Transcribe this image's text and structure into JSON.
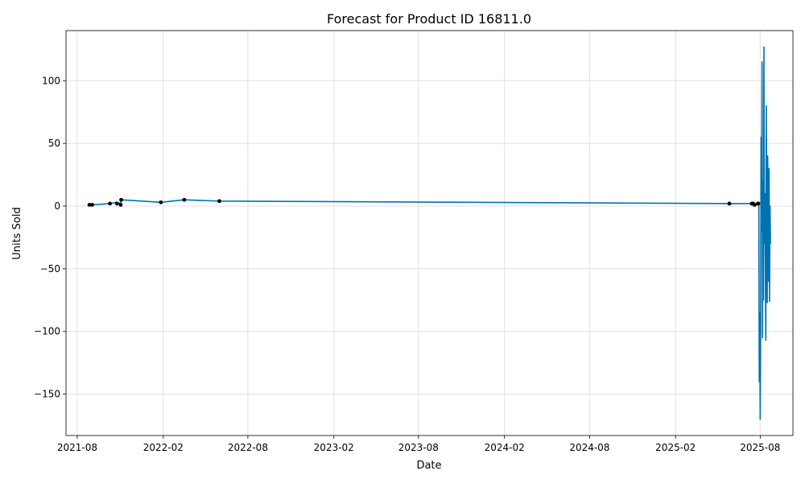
{
  "chart_data": {
    "type": "line",
    "title": "Forecast for Product ID 16811.0",
    "xlabel": "Date",
    "ylabel": "Units Sold",
    "grid": true,
    "legend": "none",
    "xlim": [
      "2021-07-08",
      "2025-10-10"
    ],
    "ylim": [
      -183,
      140
    ],
    "x_ticks": [
      "2021-08",
      "2022-02",
      "2022-08",
      "2023-02",
      "2023-08",
      "2024-02",
      "2024-08",
      "2025-02",
      "2025-08"
    ],
    "y_ticks": [
      100,
      50,
      0,
      -50,
      -100,
      -150
    ],
    "y_tick_labels": [
      "100",
      "50",
      "0",
      "−50",
      "−100",
      "−150"
    ],
    "colors": {
      "forecast_line": "#0072B2",
      "observed_points": "#000000",
      "grid": "#e0e0e0"
    },
    "series": [
      {
        "values_x": [
          "2021-08-27",
          "2021-09-02",
          "2021-10-10",
          "2021-10-25",
          "2021-11-02",
          "2021-11-03",
          "2022-01-27",
          "2022-03-18",
          "2022-06-01",
          "2025-05-27",
          "2025-07-14",
          "2025-07-20",
          "2025-07-27",
          "2025-07-29",
          "2025-07-30",
          "2025-07-31",
          "2025-08-01",
          "2025-08-02",
          "2025-08-03",
          "2025-08-04",
          "2025-08-05",
          "2025-08-06",
          "2025-08-07",
          "2025-08-08",
          "2025-08-09",
          "2025-08-10",
          "2025-08-11",
          "2025-08-12",
          "2025-08-13",
          "2025-08-14",
          "2025-08-15",
          "2025-08-16",
          "2025-08-17",
          "2025-08-18",
          "2025-08-19",
          "2025-08-20",
          "2025-08-21",
          "2025-08-22",
          "2025-08-23"
        ],
        "values_y": [
          1,
          1,
          2,
          3,
          2,
          5,
          3,
          5,
          4,
          2,
          2,
          1,
          2,
          3,
          -140,
          -85,
          -170,
          -95,
          55,
          -20,
          115,
          -105,
          20,
          -75,
          127,
          -30,
          10,
          -48,
          -107,
          80,
          -5,
          -77,
          40,
          -30,
          -60,
          30,
          -76,
          0,
          -30
        ]
      }
    ],
    "observed_x": [
      "2021-08-27",
      "2021-09-02",
      "2021-10-10",
      "2021-10-25",
      "2021-11-02",
      "2021-11-03",
      "2022-01-27",
      "2022-03-18",
      "2022-06-01",
      "2025-05-27",
      "2025-07-14",
      "2025-07-17",
      "2025-07-20",
      "2025-07-27",
      "2025-07-28"
    ],
    "observed_y": [
      1,
      1,
      2,
      2,
      1,
      5,
      3,
      5,
      4,
      2,
      2,
      2,
      1,
      2,
      2
    ]
  }
}
